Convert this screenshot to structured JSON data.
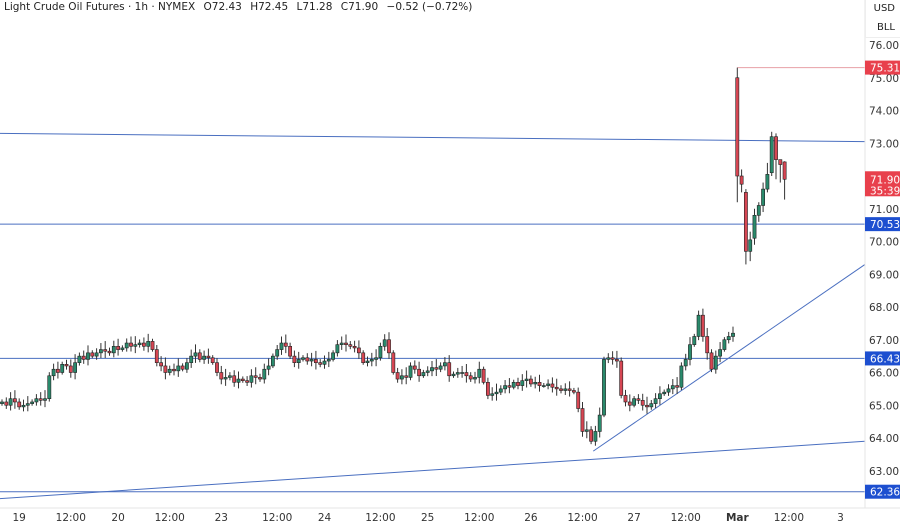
{
  "header": {
    "symbol": "Light Crude Oil Futures · 1h · NYMEX",
    "open": "O72.43",
    "high": "H72.45",
    "low": "L71.28",
    "close": "C71.90",
    "change": "−0.52 (−0.72%)"
  },
  "axis_units": {
    "currency": "USD",
    "unit": "BLL"
  },
  "colors": {
    "up": "#2a8a6c",
    "down": "#d64653",
    "line": "#4a6fc0",
    "label_blue": "#1d4fd0",
    "label_red": "#e8404c"
  },
  "chart_data": {
    "type": "candlestick",
    "title": "Light Crude Oil Futures · 1h · NYMEX",
    "ylim": [
      61.8,
      76.4
    ],
    "y_ticks": [
      "76.00",
      "75.00",
      "74.00",
      "73.00",
      "71.00",
      "70.00",
      "69.00",
      "68.00",
      "67.00",
      "66.00",
      "65.00",
      "64.00",
      "63.00"
    ],
    "x_ticks": [
      {
        "label": "19",
        "bar": 4
      },
      {
        "label": "12:00",
        "bar": 16
      },
      {
        "label": "20",
        "bar": 27
      },
      {
        "label": "12:00",
        "bar": 39
      },
      {
        "label": "23",
        "bar": 51
      },
      {
        "label": "12:00",
        "bar": 64
      },
      {
        "label": "24",
        "bar": 75
      },
      {
        "label": "12:00",
        "bar": 88
      },
      {
        "label": "25",
        "bar": 99
      },
      {
        "label": "12:00",
        "bar": 111
      },
      {
        "label": "26",
        "bar": 123
      },
      {
        "label": "12:00",
        "bar": 135
      },
      {
        "label": "27",
        "bar": 147
      },
      {
        "label": "12:00",
        "bar": 159
      },
      {
        "label": "Mar",
        "bar": 171
      },
      {
        "label": "12:00",
        "bar": 183
      },
      {
        "label": "3",
        "bar": 195
      }
    ],
    "closes": [
      65.1,
      65.0,
      65.2,
      65.1,
      64.95,
      65.0,
      65.05,
      65.1,
      65.2,
      65.15,
      65.2,
      65.9,
      66.1,
      66.0,
      66.25,
      66.2,
      66.0,
      66.3,
      66.5,
      66.4,
      66.6,
      66.5,
      66.6,
      66.7,
      66.65,
      66.6,
      66.8,
      66.7,
      66.75,
      66.9,
      66.8,
      66.85,
      66.9,
      66.8,
      66.95,
      66.7,
      66.3,
      66.2,
      66.0,
      66.1,
      66.05,
      66.2,
      66.1,
      66.3,
      66.5,
      66.6,
      66.4,
      66.5,
      66.45,
      66.3,
      66.0,
      65.8,
      65.85,
      65.9,
      65.7,
      65.8,
      65.75,
      65.7,
      65.9,
      65.85,
      65.8,
      66.1,
      66.2,
      66.5,
      66.7,
      66.9,
      66.8,
      66.5,
      66.3,
      66.4,
      66.45,
      66.35,
      66.4,
      66.3,
      66.25,
      66.35,
      66.4,
      66.6,
      66.85,
      66.9,
      66.85,
      66.8,
      66.75,
      66.6,
      66.3,
      66.35,
      66.4,
      66.45,
      66.8,
      67.0,
      66.6,
      66.0,
      65.8,
      65.9,
      65.85,
      66.2,
      66.1,
      65.9,
      66.0,
      66.05,
      66.15,
      66.1,
      66.2,
      66.3,
      65.9,
      65.95,
      66.0,
      66.0,
      65.9,
      65.8,
      65.85,
      66.1,
      65.7,
      65.3,
      65.35,
      65.4,
      65.5,
      65.6,
      65.55,
      65.7,
      65.6,
      65.75,
      65.8,
      65.65,
      65.7,
      65.6,
      65.6,
      65.65,
      65.55,
      65.5,
      65.45,
      65.5,
      65.45,
      65.4,
      64.9,
      64.2,
      64.25,
      63.9,
      64.2,
      64.7,
      66.4,
      66.45,
      66.4,
      66.35,
      65.3,
      65.1,
      65.0,
      65.2,
      65.15,
      65.0,
      64.95,
      65.05,
      65.2,
      65.35,
      65.4,
      65.5,
      65.6,
      65.55,
      66.2,
      66.4,
      66.85,
      67.1,
      67.75,
      67.1,
      66.6,
      66.1,
      66.5,
      66.7,
      67.0,
      67.1,
      67.2
    ],
    "ohlc_recent": [
      [
        75.0,
        75.31,
        71.2,
        72.0
      ],
      [
        72.0,
        72.2,
        71.5,
        71.75
      ],
      [
        71.5,
        71.6,
        69.3,
        69.7
      ],
      [
        69.7,
        70.3,
        69.4,
        70.05
      ],
      [
        70.1,
        71.0,
        69.9,
        70.8
      ],
      [
        70.8,
        71.2,
        70.6,
        71.1
      ],
      [
        71.1,
        71.8,
        70.9,
        71.6
      ],
      [
        71.6,
        72.4,
        71.5,
        72.05
      ],
      [
        72.1,
        73.35,
        72.0,
        73.2
      ],
      [
        73.2,
        73.3,
        71.9,
        72.5
      ],
      [
        72.5,
        72.5,
        71.8,
        72.35
      ],
      [
        72.43,
        72.45,
        71.28,
        71.9
      ]
    ],
    "horizontal_levels": [
      {
        "price": 70.53,
        "label": "70.53",
        "style": "blue"
      },
      {
        "price": 66.43,
        "label": "66.43",
        "style": "blue"
      },
      {
        "price": 62.36,
        "label": "62.36",
        "style": "blue"
      },
      {
        "price": 75.31,
        "label": "75.31",
        "style": "red",
        "from_bar": 171
      }
    ],
    "trend_lines": [
      {
        "from": [
          -0.5,
          73.3
        ],
        "to": [
          201,
          73.05
        ]
      },
      {
        "from": [
          -0.5,
          62.15
        ],
        "to": [
          201,
          63.9
        ]
      },
      {
        "from": [
          137.5,
          63.6
        ],
        "to": [
          201,
          69.3
        ]
      }
    ],
    "last_price": {
      "price": "71.90",
      "countdown": "35:39"
    }
  }
}
